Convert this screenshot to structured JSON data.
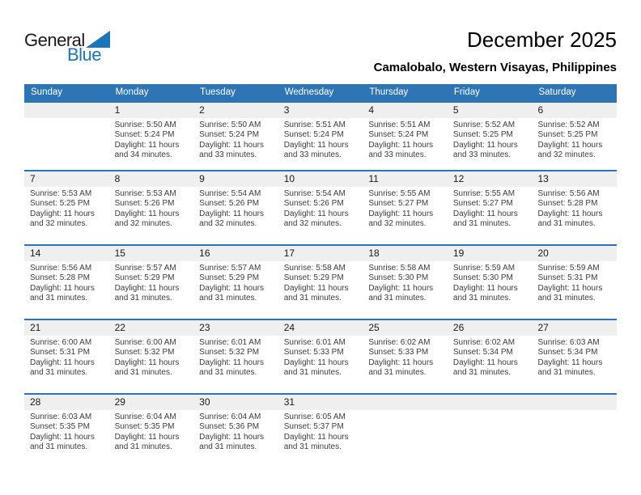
{
  "page": {
    "title": "December 2025",
    "subtitle": "Camalobalo, Western Visayas, Philippines"
  },
  "logo": {
    "part1": "General",
    "part2": "Blue",
    "triangle_icon_color": "#1b75bc"
  },
  "colors": {
    "header_bg": "#2e75b6",
    "week_divider": "#2e74b5",
    "day_band_bg": "#efefef",
    "header_text": "#ffffff",
    "body_text": "#3c3c3c"
  },
  "calendar": {
    "weekdays": [
      "Sunday",
      "Monday",
      "Tuesday",
      "Wednesday",
      "Thursday",
      "Friday",
      "Saturday"
    ],
    "weeks": [
      [
        null,
        {
          "day": "1",
          "lines": [
            "Sunrise: 5:50 AM",
            "Sunset: 5:24 PM",
            "Daylight: 11 hours and 34 minutes."
          ]
        },
        {
          "day": "2",
          "lines": [
            "Sunrise: 5:50 AM",
            "Sunset: 5:24 PM",
            "Daylight: 11 hours and 33 minutes."
          ]
        },
        {
          "day": "3",
          "lines": [
            "Sunrise: 5:51 AM",
            "Sunset: 5:24 PM",
            "Daylight: 11 hours and 33 minutes."
          ]
        },
        {
          "day": "4",
          "lines": [
            "Sunrise: 5:51 AM",
            "Sunset: 5:24 PM",
            "Daylight: 11 hours and 33 minutes."
          ]
        },
        {
          "day": "5",
          "lines": [
            "Sunrise: 5:52 AM",
            "Sunset: 5:25 PM",
            "Daylight: 11 hours and 33 minutes."
          ]
        },
        {
          "day": "6",
          "lines": [
            "Sunrise: 5:52 AM",
            "Sunset: 5:25 PM",
            "Daylight: 11 hours and 32 minutes."
          ]
        }
      ],
      [
        {
          "day": "7",
          "lines": [
            "Sunrise: 5:53 AM",
            "Sunset: 5:25 PM",
            "Daylight: 11 hours and 32 minutes."
          ]
        },
        {
          "day": "8",
          "lines": [
            "Sunrise: 5:53 AM",
            "Sunset: 5:26 PM",
            "Daylight: 11 hours and 32 minutes."
          ]
        },
        {
          "day": "9",
          "lines": [
            "Sunrise: 5:54 AM",
            "Sunset: 5:26 PM",
            "Daylight: 11 hours and 32 minutes."
          ]
        },
        {
          "day": "10",
          "lines": [
            "Sunrise: 5:54 AM",
            "Sunset: 5:26 PM",
            "Daylight: 11 hours and 32 minutes."
          ]
        },
        {
          "day": "11",
          "lines": [
            "Sunrise: 5:55 AM",
            "Sunset: 5:27 PM",
            "Daylight: 11 hours and 32 minutes."
          ]
        },
        {
          "day": "12",
          "lines": [
            "Sunrise: 5:55 AM",
            "Sunset: 5:27 PM",
            "Daylight: 11 hours and 31 minutes."
          ]
        },
        {
          "day": "13",
          "lines": [
            "Sunrise: 5:56 AM",
            "Sunset: 5:28 PM",
            "Daylight: 11 hours and 31 minutes."
          ]
        }
      ],
      [
        {
          "day": "14",
          "lines": [
            "Sunrise: 5:56 AM",
            "Sunset: 5:28 PM",
            "Daylight: 11 hours and 31 minutes."
          ]
        },
        {
          "day": "15",
          "lines": [
            "Sunrise: 5:57 AM",
            "Sunset: 5:29 PM",
            "Daylight: 11 hours and 31 minutes."
          ]
        },
        {
          "day": "16",
          "lines": [
            "Sunrise: 5:57 AM",
            "Sunset: 5:29 PM",
            "Daylight: 11 hours and 31 minutes."
          ]
        },
        {
          "day": "17",
          "lines": [
            "Sunrise: 5:58 AM",
            "Sunset: 5:29 PM",
            "Daylight: 11 hours and 31 minutes."
          ]
        },
        {
          "day": "18",
          "lines": [
            "Sunrise: 5:58 AM",
            "Sunset: 5:30 PM",
            "Daylight: 11 hours and 31 minutes."
          ]
        },
        {
          "day": "19",
          "lines": [
            "Sunrise: 5:59 AM",
            "Sunset: 5:30 PM",
            "Daylight: 11 hours and 31 minutes."
          ]
        },
        {
          "day": "20",
          "lines": [
            "Sunrise: 5:59 AM",
            "Sunset: 5:31 PM",
            "Daylight: 11 hours and 31 minutes."
          ]
        }
      ],
      [
        {
          "day": "21",
          "lines": [
            "Sunrise: 6:00 AM",
            "Sunset: 5:31 PM",
            "Daylight: 11 hours and 31 minutes."
          ]
        },
        {
          "day": "22",
          "lines": [
            "Sunrise: 6:00 AM",
            "Sunset: 5:32 PM",
            "Daylight: 11 hours and 31 minutes."
          ]
        },
        {
          "day": "23",
          "lines": [
            "Sunrise: 6:01 AM",
            "Sunset: 5:32 PM",
            "Daylight: 11 hours and 31 minutes."
          ]
        },
        {
          "day": "24",
          "lines": [
            "Sunrise: 6:01 AM",
            "Sunset: 5:33 PM",
            "Daylight: 11 hours and 31 minutes."
          ]
        },
        {
          "day": "25",
          "lines": [
            "Sunrise: 6:02 AM",
            "Sunset: 5:33 PM",
            "Daylight: 11 hours and 31 minutes."
          ]
        },
        {
          "day": "26",
          "lines": [
            "Sunrise: 6:02 AM",
            "Sunset: 5:34 PM",
            "Daylight: 11 hours and 31 minutes."
          ]
        },
        {
          "day": "27",
          "lines": [
            "Sunrise: 6:03 AM",
            "Sunset: 5:34 PM",
            "Daylight: 11 hours and 31 minutes."
          ]
        }
      ],
      [
        {
          "day": "28",
          "lines": [
            "Sunrise: 6:03 AM",
            "Sunset: 5:35 PM",
            "Daylight: 11 hours and 31 minutes."
          ]
        },
        {
          "day": "29",
          "lines": [
            "Sunrise: 6:04 AM",
            "Sunset: 5:35 PM",
            "Daylight: 11 hours and 31 minutes."
          ]
        },
        {
          "day": "30",
          "lines": [
            "Sunrise: 6:04 AM",
            "Sunset: 5:36 PM",
            "Daylight: 11 hours and 31 minutes."
          ]
        },
        {
          "day": "31",
          "lines": [
            "Sunrise: 6:05 AM",
            "Sunset: 5:37 PM",
            "Daylight: 11 hours and 31 minutes."
          ]
        },
        null,
        null,
        null
      ]
    ]
  }
}
